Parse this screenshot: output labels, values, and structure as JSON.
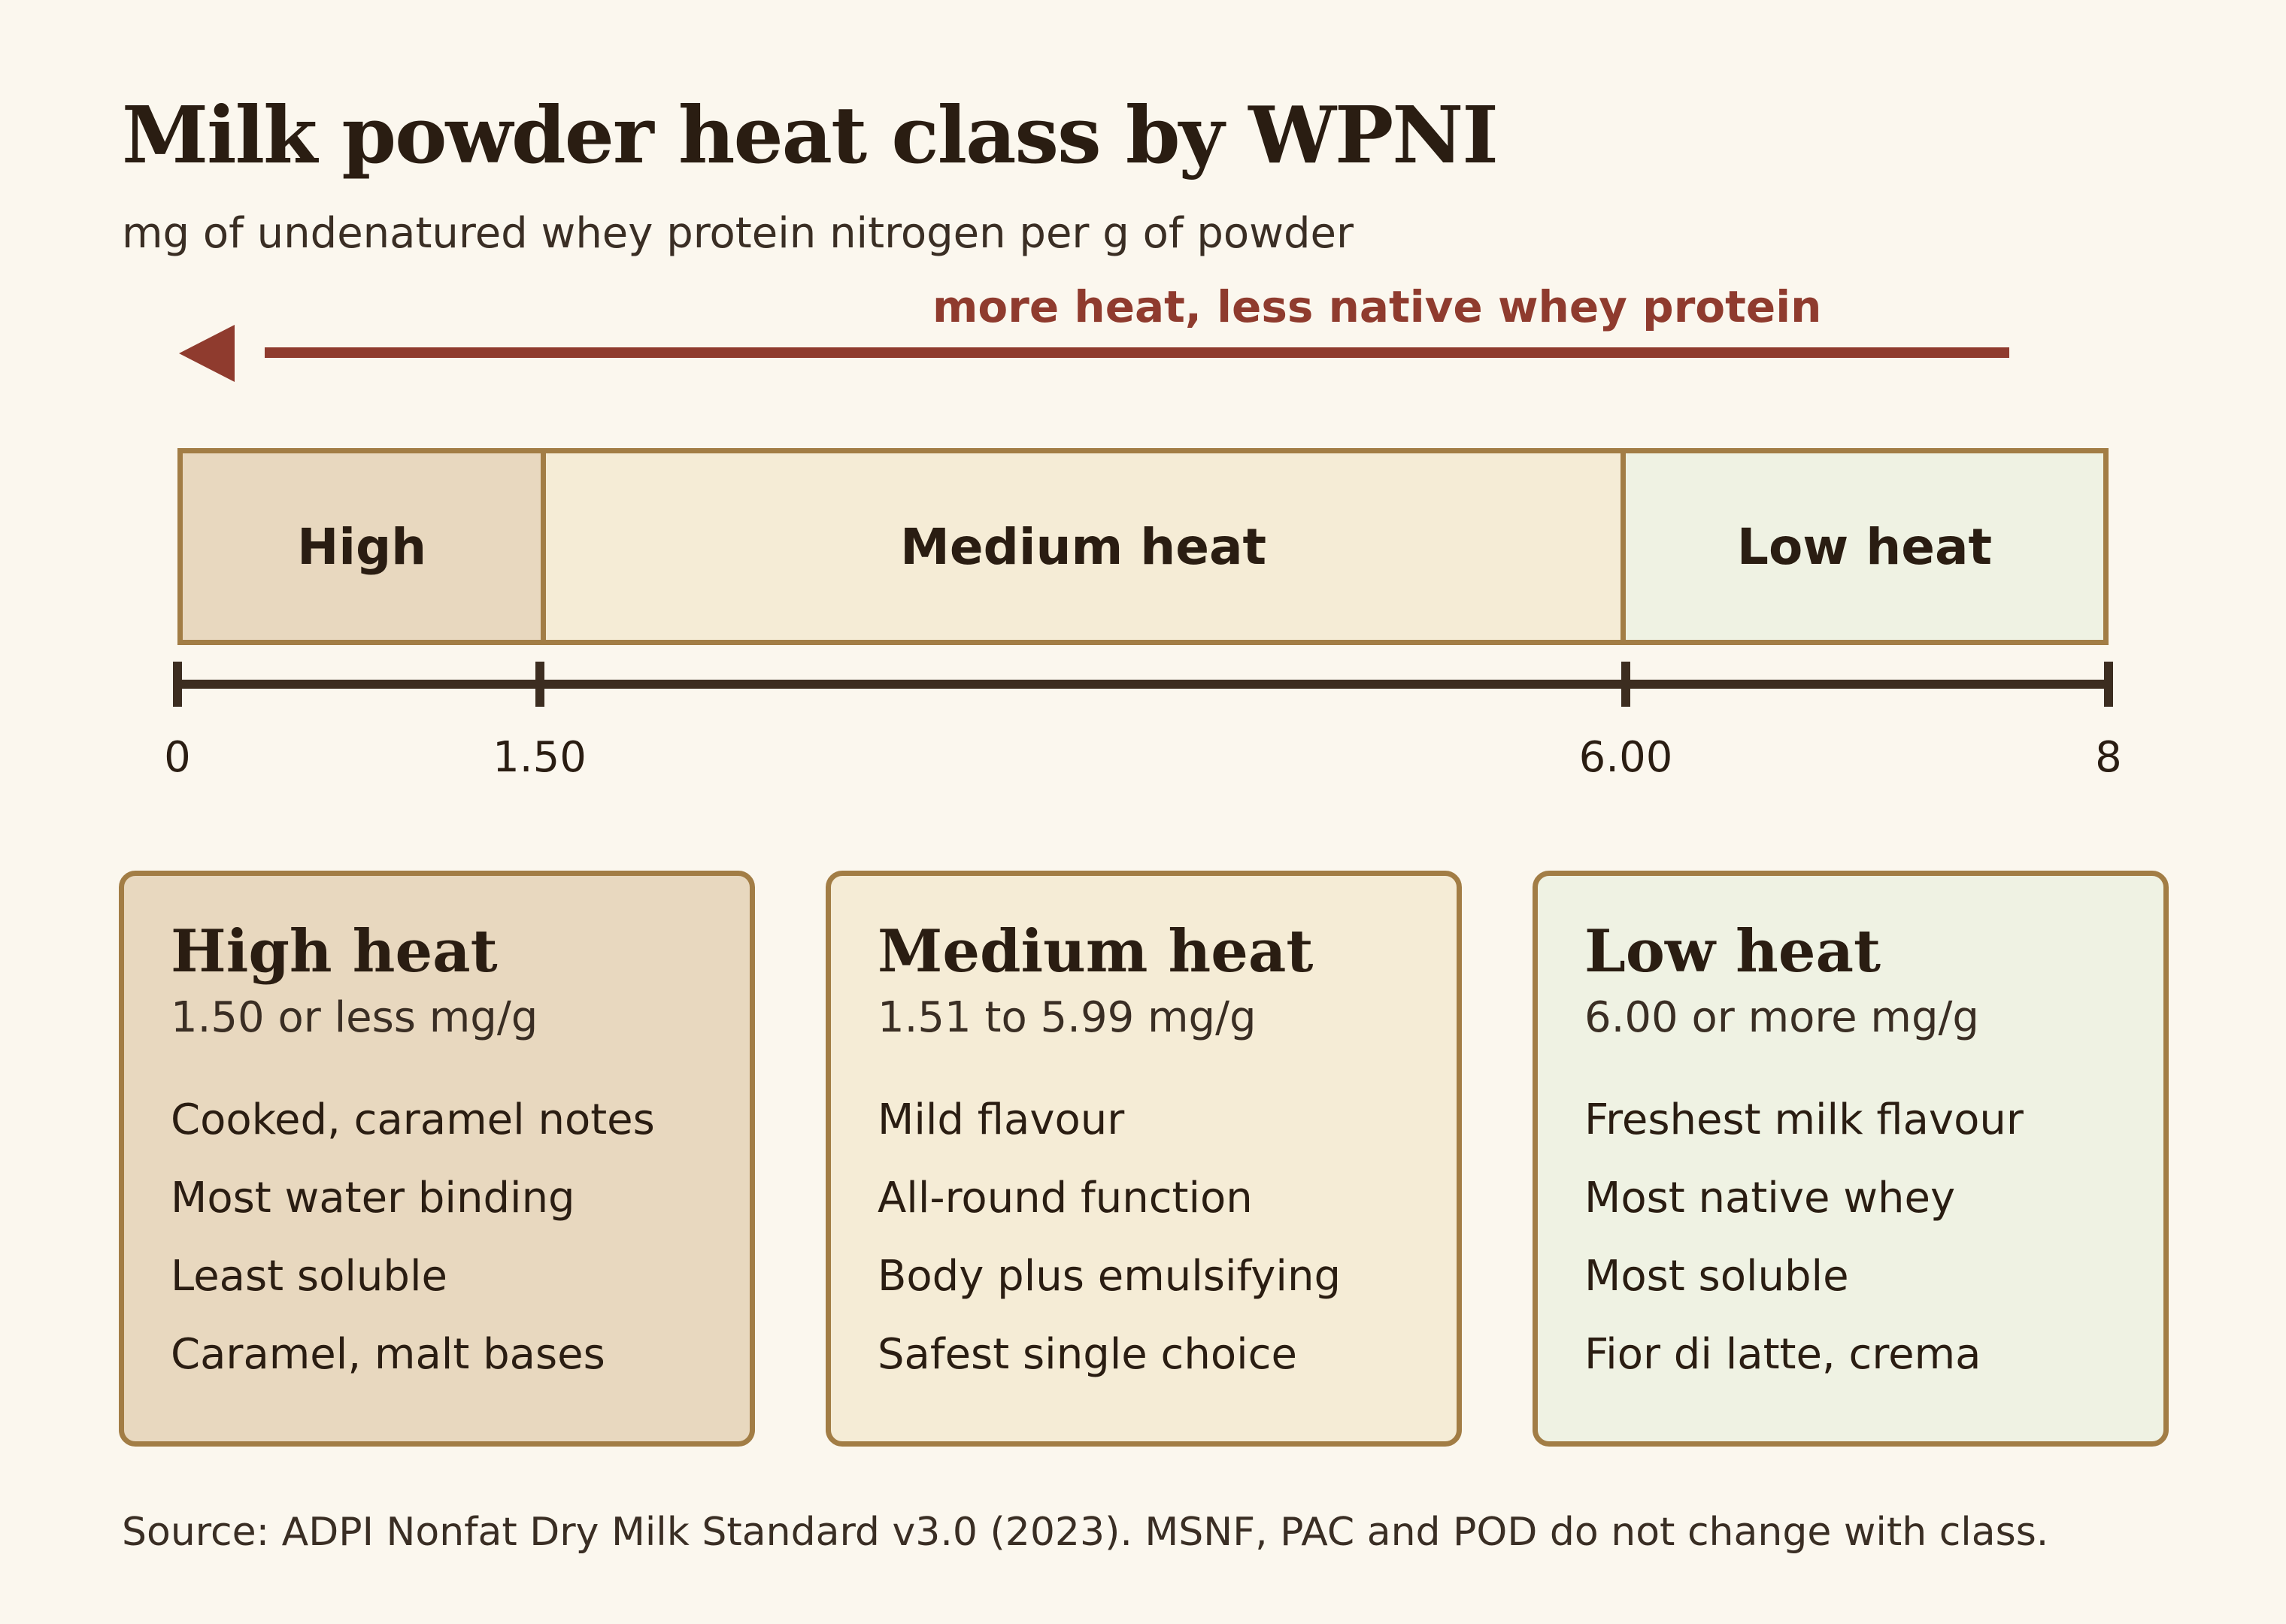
{
  "title": "Milk powder heat class by WPNI",
  "subtitle": "mg of undenatured whey protein nitrogen per g of powder",
  "arrow_label": "more heat, less native whey protein",
  "colors": {
    "background": "#fbf7ee",
    "arrow": "#8f3b2e",
    "border": "#a27d45",
    "high": "#e8d8bf",
    "medium": "#f5ecd6",
    "low": "#eff2e3"
  },
  "chart_data": {
    "type": "bar",
    "axis_min": 0,
    "axis_max": 8,
    "ticks": [
      {
        "value": 0,
        "label": "0"
      },
      {
        "value": 1.5,
        "label": "1.50"
      },
      {
        "value": 6.0,
        "label": "6.00"
      },
      {
        "value": 8,
        "label": "8"
      }
    ],
    "bands": [
      {
        "name": "High",
        "from": 0,
        "to": 1.5,
        "color": "#e8d8bf"
      },
      {
        "name": "Medium heat",
        "from": 1.5,
        "to": 6.0,
        "color": "#f5ecd6"
      },
      {
        "name": "Low heat",
        "from": 6.0,
        "to": 8,
        "color": "#eff2e3"
      }
    ]
  },
  "cards": [
    {
      "title": "High heat",
      "range": "1.50 or less mg/g",
      "color": "#e8d8bf",
      "items": [
        "Cooked, caramel notes",
        "Most water binding",
        "Least soluble",
        "Caramel, malt bases"
      ]
    },
    {
      "title": "Medium heat",
      "range": "1.51 to 5.99 mg/g",
      "color": "#f5ecd6",
      "items": [
        "Mild flavour",
        "All-round function",
        "Body plus emulsifying",
        "Safest single choice"
      ]
    },
    {
      "title": "Low heat",
      "range": "6.00 or more mg/g",
      "color": "#eff2e3",
      "items": [
        "Freshest milk flavour",
        "Most native whey",
        "Most soluble",
        "Fior di latte, crema"
      ]
    }
  ],
  "source": "Source: ADPI Nonfat Dry Milk Standard v3.0 (2023). MSNF, PAC and POD do not change with class."
}
